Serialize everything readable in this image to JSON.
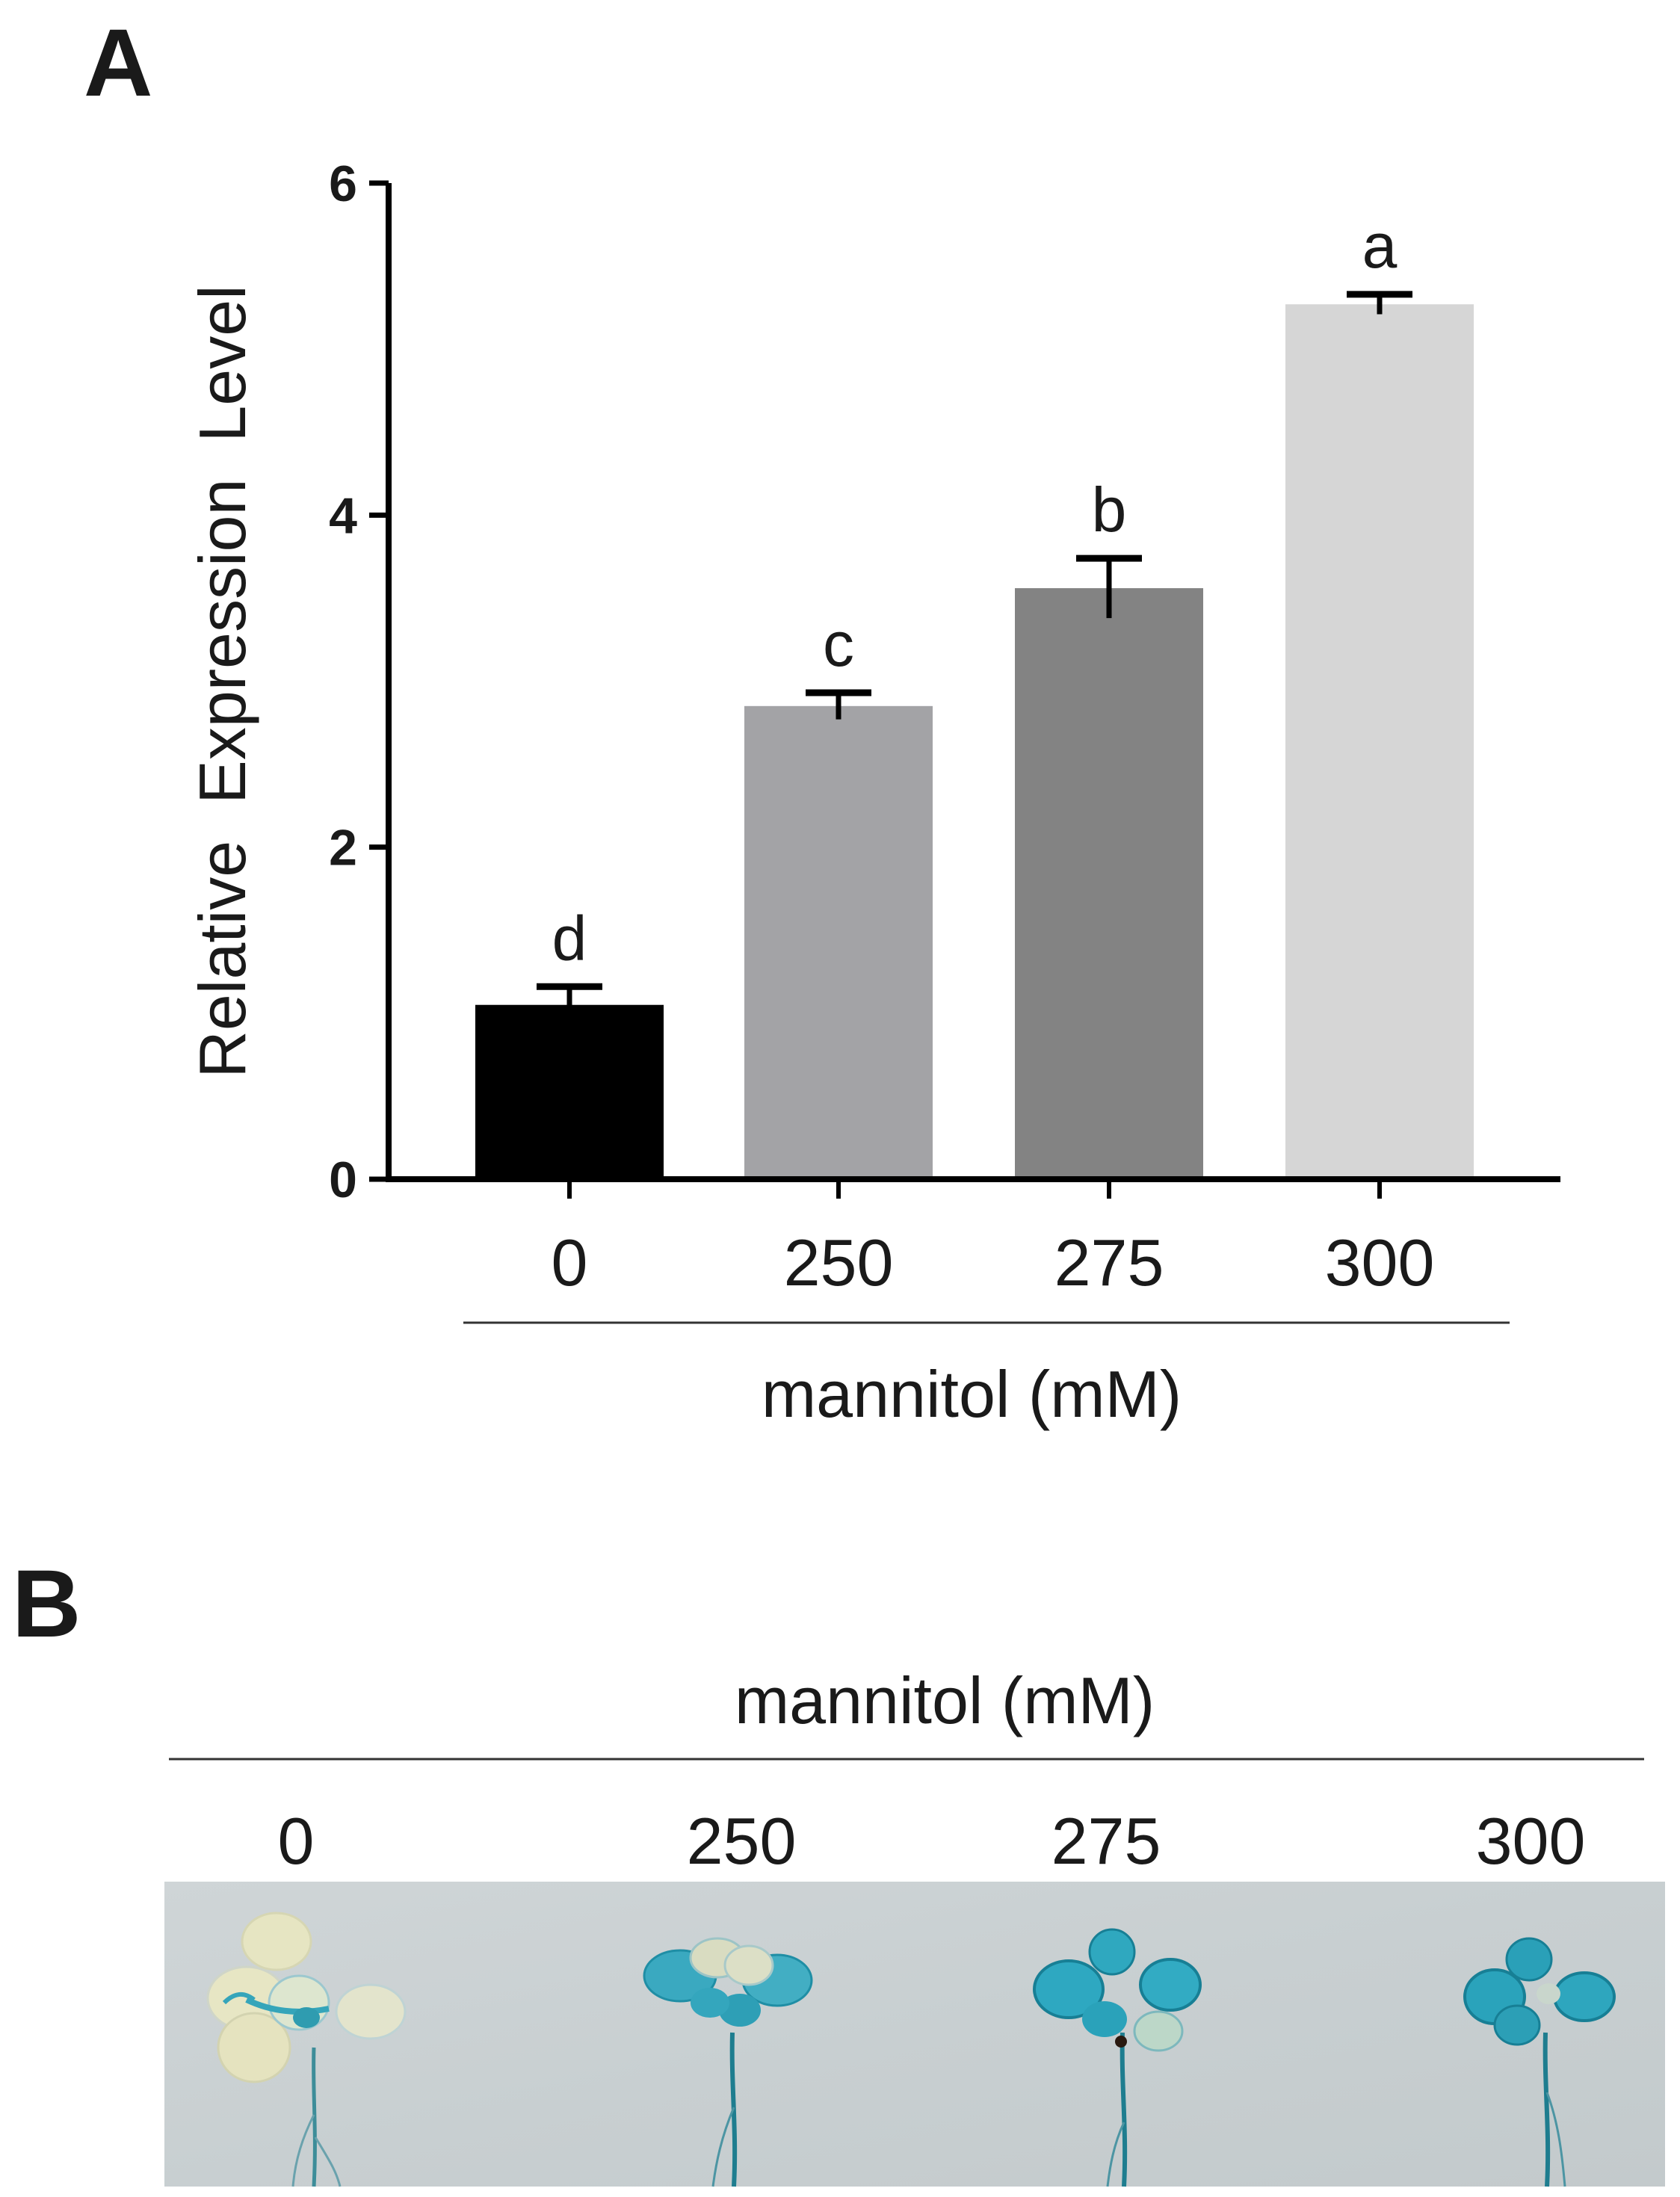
{
  "panels": {
    "a_label": "A",
    "b_label": "B"
  },
  "chart_data": {
    "type": "bar",
    "categories": [
      "0",
      "250",
      "275",
      "300"
    ],
    "values": [
      1.05,
      2.85,
      3.56,
      5.27
    ],
    "errors": [
      0.11,
      0.08,
      0.18,
      0.06
    ],
    "significance_letters": [
      "d",
      "c",
      "b",
      "a"
    ],
    "bar_colors": [
      "#000000",
      "#a3a3a6",
      "#838383",
      "#d6d6d6"
    ],
    "title": "",
    "xlabel": "mannitol (mM)",
    "ylabel": "Relative  Expression  Level",
    "ylim": [
      0,
      6
    ],
    "yticks": [
      "0",
      "2",
      "4",
      "6"
    ],
    "grid": false,
    "legend": "none"
  },
  "panel_b": {
    "group_label": "mannitol (mM)",
    "columns": [
      "0",
      "250",
      "275",
      "300"
    ],
    "photo_description_colors": {
      "background": "#c9d0d2",
      "stain": "#1f9fb5",
      "unstained_leaf": "#e3e2bc"
    }
  }
}
